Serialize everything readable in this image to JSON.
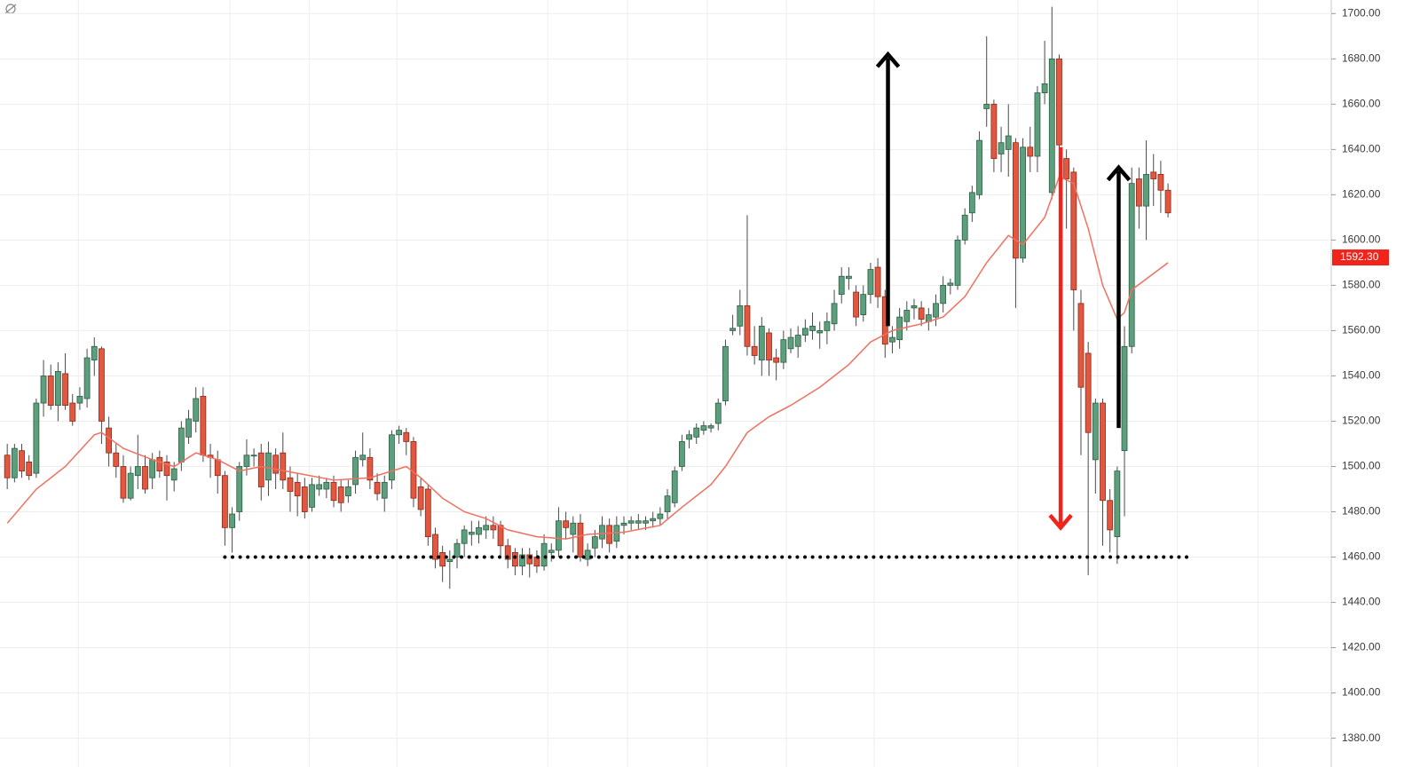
{
  "chart_data": {
    "type": "candlestick",
    "ylim": [
      1372,
      1706
    ],
    "xlim": [
      -1,
      182.5
    ],
    "yticks": [
      {
        "value": 1380,
        "label": "1380.00"
      },
      {
        "value": 1400,
        "label": "1400.00"
      },
      {
        "value": 1420,
        "label": "1420.00"
      },
      {
        "value": 1440,
        "label": "1440.00"
      },
      {
        "value": 1460,
        "label": "1460.00"
      },
      {
        "value": 1480,
        "label": "1480.00"
      },
      {
        "value": 1500,
        "label": "1500.00"
      },
      {
        "value": 1520,
        "label": "1520.00"
      },
      {
        "value": 1540,
        "label": "1540.00"
      },
      {
        "value": 1560,
        "label": "1560.00"
      },
      {
        "value": 1580,
        "label": "1580.00"
      },
      {
        "value": 1600,
        "label": "1600.00"
      },
      {
        "value": 1620,
        "label": "1620.00"
      },
      {
        "value": 1640,
        "label": "1640.00"
      },
      {
        "value": 1660,
        "label": "1660.00"
      },
      {
        "value": 1680,
        "label": "1680.00"
      },
      {
        "value": 1700,
        "label": "1700.00"
      }
    ],
    "xticks": [
      9.8,
      30.7,
      41.6,
      53.7,
      74.5,
      85.5,
      96.5,
      107.4,
      119.5,
      139.3,
      150.3,
      161.3,
      172.4
    ],
    "grid": true,
    "up_color": "#5b9f7c",
    "down_color": "#e2573f",
    "ma_color": "#f2705f",
    "ohlc": [
      [
        1505,
        1510,
        1490,
        1495
      ],
      [
        1495,
        1510,
        1493,
        1508
      ],
      [
        1507,
        1510,
        1495,
        1498
      ],
      [
        1502,
        1505,
        1494,
        1496
      ],
      [
        1497,
        1530,
        1495,
        1528
      ],
      [
        1528,
        1547,
        1522,
        1540
      ],
      [
        1540,
        1545,
        1525,
        1527
      ],
      [
        1527,
        1546,
        1520,
        1542
      ],
      [
        1541,
        1550,
        1525,
        1527
      ],
      [
        1528,
        1532,
        1518,
        1520
      ],
      [
        1528,
        1535,
        1525,
        1531
      ],
      [
        1530,
        1552,
        1526,
        1548
      ],
      [
        1547,
        1557,
        1540,
        1553
      ],
      [
        1552,
        1553,
        1510,
        1520
      ],
      [
        1517,
        1522,
        1500,
        1506
      ],
      [
        1506,
        1510,
        1495,
        1500
      ],
      [
        1500,
        1505,
        1484,
        1486
      ],
      [
        1486,
        1500,
        1485,
        1497
      ],
      [
        1496,
        1514,
        1490,
        1500
      ],
      [
        1500,
        1505,
        1488,
        1490
      ],
      [
        1495,
        1506,
        1490,
        1503
      ],
      [
        1504,
        1507,
        1495,
        1498
      ],
      [
        1502,
        1505,
        1485,
        1496
      ],
      [
        1494,
        1502,
        1489,
        1499
      ],
      [
        1502,
        1520,
        1498,
        1517
      ],
      [
        1513,
        1525,
        1510,
        1521
      ],
      [
        1520,
        1535,
        1515,
        1530
      ],
      [
        1531,
        1535,
        1502,
        1505
      ],
      [
        1505,
        1510,
        1495,
        1504
      ],
      [
        1503,
        1507,
        1488,
        1496
      ],
      [
        1496,
        1498,
        1465,
        1473
      ],
      [
        1473,
        1482,
        1462,
        1479
      ],
      [
        1480,
        1502,
        1476,
        1500
      ],
      [
        1500,
        1512,
        1496,
        1505
      ],
      [
        1505,
        1508,
        1500,
        1505
      ],
      [
        1506,
        1510,
        1485,
        1491
      ],
      [
        1494,
        1511,
        1487,
        1506
      ],
      [
        1505,
        1508,
        1490,
        1497
      ],
      [
        1506,
        1515,
        1490,
        1494
      ],
      [
        1495,
        1500,
        1480,
        1489
      ],
      [
        1493,
        1497,
        1478,
        1487
      ],
      [
        1491,
        1495,
        1477,
        1480
      ],
      [
        1482,
        1495,
        1480,
        1492
      ],
      [
        1490,
        1496,
        1487,
        1492
      ],
      [
        1490,
        1495,
        1486,
        1493
      ],
      [
        1493,
        1496,
        1482,
        1485
      ],
      [
        1491,
        1494,
        1480,
        1484
      ],
      [
        1487,
        1494,
        1484,
        1491
      ],
      [
        1492,
        1507,
        1488,
        1504
      ],
      [
        1503,
        1515,
        1500,
        1505
      ],
      [
        1504,
        1508,
        1490,
        1494
      ],
      [
        1493,
        1497,
        1485,
        1488
      ],
      [
        1486,
        1496,
        1480,
        1493
      ],
      [
        1494,
        1516,
        1490,
        1514
      ],
      [
        1514,
        1518,
        1510,
        1516
      ],
      [
        1515,
        1517,
        1505,
        1511
      ],
      [
        1511,
        1513,
        1482,
        1486
      ],
      [
        1491,
        1495,
        1478,
        1481
      ],
      [
        1490,
        1492,
        1465,
        1469
      ],
      [
        1470,
        1473,
        1455,
        1459
      ],
      [
        1462,
        1465,
        1449,
        1456
      ],
      [
        1458,
        1463,
        1446,
        1459
      ],
      [
        1460,
        1468,
        1455,
        1466
      ],
      [
        1466,
        1474,
        1460,
        1472
      ],
      [
        1470,
        1476,
        1465,
        1471
      ],
      [
        1470,
        1476,
        1466,
        1473
      ],
      [
        1472,
        1478,
        1468,
        1474
      ],
      [
        1474,
        1478,
        1468,
        1472
      ],
      [
        1474,
        1476,
        1460,
        1465
      ],
      [
        1465,
        1468,
        1455,
        1459
      ],
      [
        1462,
        1464,
        1452,
        1456
      ],
      [
        1456,
        1464,
        1452,
        1461
      ],
      [
        1461,
        1464,
        1451,
        1457
      ],
      [
        1460,
        1463,
        1453,
        1456
      ],
      [
        1456,
        1470,
        1454,
        1466
      ],
      [
        1462,
        1466,
        1458,
        1463
      ],
      [
        1463,
        1482,
        1460,
        1476
      ],
      [
        1476,
        1480,
        1468,
        1473
      ],
      [
        1470,
        1478,
        1462,
        1475
      ],
      [
        1475,
        1479,
        1458,
        1460
      ],
      [
        1459,
        1466,
        1456,
        1463
      ],
      [
        1464,
        1472,
        1460,
        1469
      ],
      [
        1468,
        1478,
        1464,
        1474
      ],
      [
        1474,
        1477,
        1462,
        1466
      ],
      [
        1467,
        1478,
        1464,
        1474
      ],
      [
        1474,
        1478,
        1470,
        1475
      ],
      [
        1475,
        1478,
        1472,
        1476
      ],
      [
        1475,
        1479,
        1472,
        1476
      ],
      [
        1475,
        1478,
        1472,
        1476
      ],
      [
        1476,
        1480,
        1473,
        1477
      ],
      [
        1477,
        1482,
        1474,
        1479
      ],
      [
        1480,
        1490,
        1477,
        1487
      ],
      [
        1484,
        1500,
        1482,
        1498
      ],
      [
        1500,
        1514,
        1498,
        1511
      ],
      [
        1512,
        1516,
        1508,
        1514
      ],
      [
        1513,
        1519,
        1510,
        1517
      ],
      [
        1516,
        1520,
        1514,
        1518
      ],
      [
        1517,
        1519,
        1515,
        1518
      ],
      [
        1519,
        1530,
        1516,
        1528
      ],
      [
        1529,
        1556,
        1527,
        1553
      ],
      [
        1560,
        1567,
        1558,
        1561
      ],
      [
        1562,
        1578,
        1558,
        1571
      ],
      [
        1571,
        1611,
        1549,
        1553
      ],
      [
        1553,
        1562,
        1545,
        1549
      ],
      [
        1547,
        1566,
        1540,
        1562
      ],
      [
        1559,
        1561,
        1540,
        1547
      ],
      [
        1548,
        1552,
        1538,
        1546
      ],
      [
        1546,
        1560,
        1543,
        1556
      ],
      [
        1552,
        1561,
        1550,
        1557
      ],
      [
        1553,
        1562,
        1548,
        1558
      ],
      [
        1558,
        1565,
        1555,
        1561
      ],
      [
        1560,
        1568,
        1556,
        1562
      ],
      [
        1559,
        1564,
        1552,
        1560
      ],
      [
        1560,
        1568,
        1554,
        1564
      ],
      [
        1563,
        1578,
        1560,
        1572
      ],
      [
        1576,
        1588,
        1572,
        1584
      ],
      [
        1583,
        1588,
        1578,
        1584
      ],
      [
        1577,
        1580,
        1562,
        1566
      ],
      [
        1567,
        1580,
        1564,
        1576
      ],
      [
        1576,
        1590,
        1572,
        1587
      ],
      [
        1588,
        1592,
        1570,
        1575
      ],
      [
        1575,
        1578,
        1548,
        1554
      ],
      [
        1555,
        1562,
        1550,
        1557
      ],
      [
        1556,
        1570,
        1552,
        1566
      ],
      [
        1564,
        1573,
        1560,
        1569
      ],
      [
        1570,
        1574,
        1565,
        1571
      ],
      [
        1570,
        1573,
        1562,
        1565
      ],
      [
        1564,
        1570,
        1560,
        1567
      ],
      [
        1566,
        1576,
        1562,
        1572
      ],
      [
        1572,
        1584,
        1568,
        1580
      ],
      [
        1580,
        1583,
        1576,
        1581
      ],
      [
        1580,
        1602,
        1578,
        1600
      ],
      [
        1600,
        1614,
        1598,
        1611
      ],
      [
        1612,
        1624,
        1608,
        1621
      ],
      [
        1620,
        1648,
        1618,
        1644
      ],
      [
        1658,
        1690,
        1650,
        1660
      ],
      [
        1660,
        1662,
        1630,
        1636
      ],
      [
        1638,
        1650,
        1630,
        1643
      ],
      [
        1640,
        1660,
        1628,
        1646
      ],
      [
        1643,
        1645,
        1570,
        1592
      ],
      [
        1592,
        1645,
        1590,
        1641
      ],
      [
        1641,
        1650,
        1630,
        1637
      ],
      [
        1637,
        1668,
        1630,
        1665
      ],
      [
        1665,
        1688,
        1660,
        1669
      ],
      [
        1621,
        1703,
        1618,
        1680
      ],
      [
        1680,
        1682,
        1632,
        1642
      ],
      [
        1636,
        1640,
        1605,
        1627
      ],
      [
        1630,
        1632,
        1560,
        1578
      ],
      [
        1572,
        1578,
        1505,
        1535
      ],
      [
        1550,
        1555,
        1452,
        1515
      ],
      [
        1503,
        1530,
        1488,
        1528
      ],
      [
        1528,
        1530,
        1465,
        1485
      ],
      [
        1485,
        1490,
        1462,
        1472
      ],
      [
        1469,
        1500,
        1457,
        1498
      ],
      [
        1507,
        1562,
        1478,
        1553
      ],
      [
        1553,
        1632,
        1550,
        1625
      ],
      [
        1627,
        1632,
        1605,
        1615
      ],
      [
        1615,
        1644,
        1600,
        1629
      ],
      [
        1630,
        1638,
        1615,
        1627
      ],
      [
        1629,
        1635,
        1612,
        1622
      ],
      [
        1622,
        1625,
        1610,
        1612
      ]
    ],
    "ma": {
      "x": [
        0,
        4,
        8,
        12,
        13,
        16,
        20,
        23,
        26,
        29,
        32,
        35,
        40,
        45,
        50,
        55,
        57,
        60,
        63,
        66,
        69,
        73,
        77,
        80,
        85,
        90,
        93,
        97,
        99,
        102,
        105,
        108,
        112,
        116,
        119,
        122,
        126,
        129,
        132,
        135,
        138,
        140,
        143,
        145,
        147,
        149,
        151,
        153,
        154,
        155,
        160
      ],
      "values": [
        1475,
        1490,
        1500,
        1514,
        1515,
        1508,
        1503,
        1500,
        1506,
        1503,
        1498,
        1500,
        1497,
        1494,
        1495,
        1500,
        1495,
        1486,
        1480,
        1477,
        1472,
        1469,
        1468,
        1470,
        1471,
        1474,
        1482,
        1492,
        1500,
        1515,
        1522,
        1527,
        1535,
        1545,
        1555,
        1560,
        1563,
        1566,
        1575,
        1590,
        1602,
        1598,
        1610,
        1628,
        1625,
        1605,
        1580,
        1565,
        1568,
        1578,
        1590
      ]
    },
    "support": {
      "value": 1460,
      "from": 30,
      "to": 163
    },
    "arrows": [
      {
        "x": 121.4,
        "from": 1562,
        "to": 1682,
        "color": "#000000"
      },
      {
        "x": 145.2,
        "from": 1641,
        "to": 1473,
        "color": "#f2231b"
      },
      {
        "x": 153.2,
        "from": 1517,
        "to": 1632,
        "color": "#000000"
      }
    ],
    "last_price": {
      "value": 1592.3,
      "label": "1592.30"
    }
  }
}
